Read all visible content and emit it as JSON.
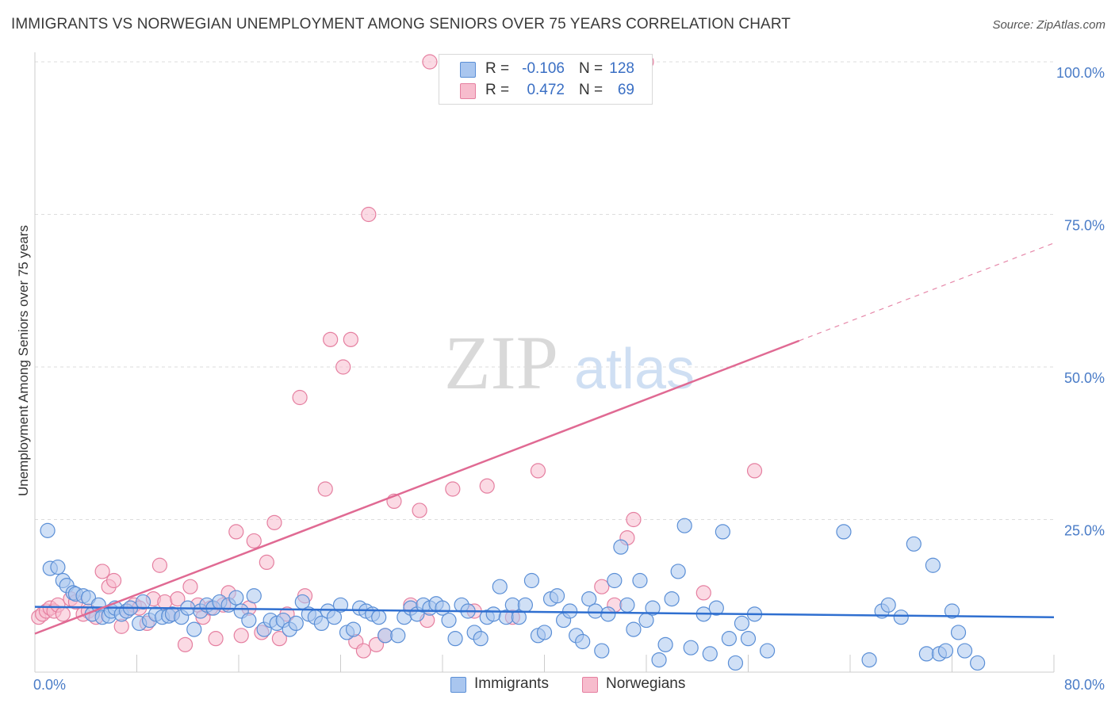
{
  "title": "IMMIGRANTS VS NORWEGIAN UNEMPLOYMENT AMONG SENIORS OVER 75 YEARS CORRELATION CHART",
  "source": "Source: ZipAtlas.com",
  "watermark": {
    "zip": "ZIP",
    "atlas": "atlas"
  },
  "colors": {
    "immigrants_fill": "#a9c6ef",
    "immigrants_stroke": "#5b8fd6",
    "immigrants_line": "#2f6fd0",
    "norwegians_fill": "#f7bccd",
    "norwegians_stroke": "#e57fa0",
    "norwegians_line": "#e06a93",
    "tick_text": "#4a7cc7",
    "grid": "#dddddd"
  },
  "stats": [
    {
      "series": "Immigrants",
      "r_label": "R =",
      "r_value": "-0.106",
      "n_label": "N =",
      "n_value": "128"
    },
    {
      "series": "Norwegians",
      "r_label": "R =",
      "r_value": "0.472",
      "n_label": "N =",
      "n_value": "69"
    }
  ],
  "chart_data": {
    "type": "scatter",
    "title": "IMMIGRANTS VS NORWEGIAN UNEMPLOYMENT AMONG SENIORS OVER 75 YEARS CORRELATION CHART",
    "xlabel": "",
    "ylabel": "Unemployment Among Seniors over 75 years",
    "xlim": [
      0,
      80
    ],
    "ylim": [
      0,
      100
    ],
    "x_tick_labels": [
      {
        "value": 0,
        "label": "0.0%"
      },
      {
        "value": 80,
        "label": "80.0%"
      }
    ],
    "y_tick_labels": [
      {
        "value": 25,
        "label": "25.0%"
      },
      {
        "value": 50,
        "label": "50.0%"
      },
      {
        "value": 75,
        "label": "75.0%"
      },
      {
        "value": 100,
        "label": "100.0%"
      }
    ],
    "grid": true,
    "legend_position": "bottom-center",
    "series": [
      {
        "name": "Immigrants",
        "trend": {
          "x": [
            0,
            80
          ],
          "y": [
            10.7,
            9.0
          ],
          "dashed_extension": false
        },
        "points": [
          [
            1.0,
            23.2
          ],
          [
            1.2,
            17.0
          ],
          [
            1.8,
            17.2
          ],
          [
            2.2,
            15.0
          ],
          [
            2.5,
            14.2
          ],
          [
            3.0,
            13.0
          ],
          [
            3.2,
            12.8
          ],
          [
            3.8,
            12.5
          ],
          [
            4.2,
            12.2
          ],
          [
            4.5,
            9.5
          ],
          [
            5.0,
            11.0
          ],
          [
            5.3,
            9.0
          ],
          [
            5.8,
            9.2
          ],
          [
            6.0,
            10.0
          ],
          [
            6.3,
            10.5
          ],
          [
            6.8,
            9.5
          ],
          [
            7.2,
            10.0
          ],
          [
            7.5,
            10.5
          ],
          [
            8.2,
            8.0
          ],
          [
            8.5,
            11.5
          ],
          [
            9.0,
            8.5
          ],
          [
            9.5,
            9.5
          ],
          [
            10.0,
            9.0
          ],
          [
            10.5,
            9.2
          ],
          [
            10.8,
            9.5
          ],
          [
            11.5,
            9.0
          ],
          [
            12.0,
            10.5
          ],
          [
            12.5,
            7.0
          ],
          [
            13.0,
            10.0
          ],
          [
            13.5,
            11.0
          ],
          [
            14.0,
            10.5
          ],
          [
            14.5,
            11.5
          ],
          [
            15.2,
            11.0
          ],
          [
            15.8,
            12.2
          ],
          [
            16.2,
            10.0
          ],
          [
            16.8,
            8.5
          ],
          [
            17.2,
            12.5
          ],
          [
            18.0,
            7.0
          ],
          [
            18.5,
            8.5
          ],
          [
            19.0,
            8.0
          ],
          [
            19.5,
            8.5
          ],
          [
            20.0,
            7.0
          ],
          [
            20.5,
            8.0
          ],
          [
            21.0,
            11.5
          ],
          [
            21.5,
            9.5
          ],
          [
            22.0,
            9.0
          ],
          [
            22.5,
            8.0
          ],
          [
            23.0,
            10.0
          ],
          [
            23.5,
            9.0
          ],
          [
            24.0,
            11.0
          ],
          [
            24.5,
            6.5
          ],
          [
            25.0,
            7.0
          ],
          [
            25.5,
            10.5
          ],
          [
            26.0,
            10.0
          ],
          [
            26.5,
            9.5
          ],
          [
            27.0,
            9.0
          ],
          [
            27.5,
            6.0
          ],
          [
            28.5,
            6.0
          ],
          [
            29.0,
            9.0
          ],
          [
            29.5,
            10.5
          ],
          [
            30.0,
            9.5
          ],
          [
            30.5,
            11.0
          ],
          [
            31.0,
            10.5
          ],
          [
            31.5,
            11.2
          ],
          [
            32.0,
            10.5
          ],
          [
            32.5,
            8.5
          ],
          [
            33.0,
            5.5
          ],
          [
            33.5,
            11.0
          ],
          [
            34.0,
            10.0
          ],
          [
            34.5,
            6.5
          ],
          [
            35.0,
            5.5
          ],
          [
            35.5,
            9.0
          ],
          [
            36.0,
            9.5
          ],
          [
            36.5,
            14.0
          ],
          [
            37.0,
            9.0
          ],
          [
            37.5,
            11.0
          ],
          [
            38.0,
            9.0
          ],
          [
            38.5,
            11.0
          ],
          [
            39.0,
            15.0
          ],
          [
            39.5,
            6.0
          ],
          [
            40.0,
            6.5
          ],
          [
            40.5,
            12.0
          ],
          [
            41.0,
            12.5
          ],
          [
            41.5,
            8.5
          ],
          [
            42.0,
            10.0
          ],
          [
            42.5,
            6.0
          ],
          [
            43.0,
            5.0
          ],
          [
            43.5,
            12.0
          ],
          [
            44.0,
            10.0
          ],
          [
            44.5,
            3.5
          ],
          [
            45.0,
            9.5
          ],
          [
            45.5,
            15.0
          ],
          [
            46.0,
            20.5
          ],
          [
            46.5,
            11.0
          ],
          [
            47.0,
            7.0
          ],
          [
            47.5,
            15.0
          ],
          [
            48.0,
            8.5
          ],
          [
            48.5,
            10.5
          ],
          [
            49.0,
            2.0
          ],
          [
            49.5,
            4.5
          ],
          [
            50.0,
            12.0
          ],
          [
            50.5,
            16.5
          ],
          [
            51.0,
            24.0
          ],
          [
            51.5,
            4.0
          ],
          [
            52.5,
            9.5
          ],
          [
            53.0,
            3.0
          ],
          [
            53.5,
            10.5
          ],
          [
            54.0,
            23.0
          ],
          [
            54.5,
            5.5
          ],
          [
            55.0,
            1.5
          ],
          [
            55.5,
            8.0
          ],
          [
            56.0,
            5.5
          ],
          [
            56.5,
            9.5
          ],
          [
            57.5,
            3.5
          ],
          [
            63.5,
            23.0
          ],
          [
            65.5,
            2.0
          ],
          [
            66.5,
            10.0
          ],
          [
            67.0,
            11.0
          ],
          [
            68.0,
            9.0
          ],
          [
            69.0,
            21.0
          ],
          [
            70.0,
            3.0
          ],
          [
            70.5,
            17.5
          ],
          [
            71.0,
            3.0
          ],
          [
            71.5,
            3.5
          ],
          [
            72.0,
            10.0
          ],
          [
            72.5,
            6.5
          ],
          [
            73.0,
            3.5
          ],
          [
            74.0,
            1.5
          ]
        ]
      },
      {
        "name": "Norwegians",
        "trend": {
          "x": [
            0,
            60
          ],
          "y": [
            6.3,
            54.3
          ],
          "dashed_extension": {
            "x": [
              60,
              80
            ],
            "y": [
              54.3,
              70.3
            ]
          }
        },
        "points": [
          [
            0.3,
            9.0
          ],
          [
            0.6,
            9.5
          ],
          [
            0.9,
            10.0
          ],
          [
            1.2,
            10.5
          ],
          [
            1.5,
            10.0
          ],
          [
            1.8,
            11.0
          ],
          [
            2.2,
            9.5
          ],
          [
            2.8,
            12.0
          ],
          [
            3.2,
            11.5
          ],
          [
            3.8,
            9.5
          ],
          [
            4.2,
            10.0
          ],
          [
            4.8,
            9.0
          ],
          [
            5.3,
            16.5
          ],
          [
            5.8,
            14.0
          ],
          [
            6.2,
            15.0
          ],
          [
            6.8,
            7.5
          ],
          [
            7.2,
            10.0
          ],
          [
            7.8,
            11.0
          ],
          [
            8.2,
            10.5
          ],
          [
            8.8,
            8.0
          ],
          [
            9.3,
            12.0
          ],
          [
            9.8,
            17.5
          ],
          [
            10.2,
            11.5
          ],
          [
            10.8,
            9.5
          ],
          [
            11.2,
            12.0
          ],
          [
            11.8,
            4.5
          ],
          [
            12.2,
            14.0
          ],
          [
            12.8,
            11.0
          ],
          [
            13.2,
            9.0
          ],
          [
            13.8,
            10.5
          ],
          [
            14.2,
            5.5
          ],
          [
            14.8,
            11.0
          ],
          [
            15.2,
            13.0
          ],
          [
            15.8,
            23.0
          ],
          [
            16.2,
            6.0
          ],
          [
            16.8,
            10.5
          ],
          [
            17.2,
            21.5
          ],
          [
            17.8,
            6.5
          ],
          [
            18.2,
            18.0
          ],
          [
            18.8,
            24.5
          ],
          [
            19.2,
            5.5
          ],
          [
            19.8,
            9.5
          ],
          [
            20.8,
            45.0
          ],
          [
            21.2,
            12.5
          ],
          [
            22.8,
            30.0
          ],
          [
            23.2,
            54.5
          ],
          [
            24.2,
            50.0
          ],
          [
            24.8,
            54.5
          ],
          [
            25.2,
            5.0
          ],
          [
            25.8,
            3.5
          ],
          [
            26.2,
            75.0
          ],
          [
            26.8,
            4.5
          ],
          [
            27.5,
            6.0
          ],
          [
            28.2,
            28.0
          ],
          [
            29.5,
            11.0
          ],
          [
            30.2,
            26.5
          ],
          [
            30.8,
            8.5
          ],
          [
            32.8,
            30.0
          ],
          [
            34.5,
            10.0
          ],
          [
            35.5,
            30.5
          ],
          [
            37.5,
            9.0
          ],
          [
            39.5,
            33.0
          ],
          [
            44.5,
            14.0
          ],
          [
            45.5,
            11.0
          ],
          [
            46.5,
            22.0
          ],
          [
            47.0,
            25.0
          ],
          [
            52.5,
            13.0
          ],
          [
            56.5,
            33.0
          ],
          [
            31.0,
            100.0
          ],
          [
            48.0,
            100.0
          ]
        ]
      }
    ]
  },
  "legend": [
    {
      "name": "Immigrants",
      "label": "Immigrants"
    },
    {
      "name": "Norwegians",
      "label": "Norwegians"
    }
  ]
}
